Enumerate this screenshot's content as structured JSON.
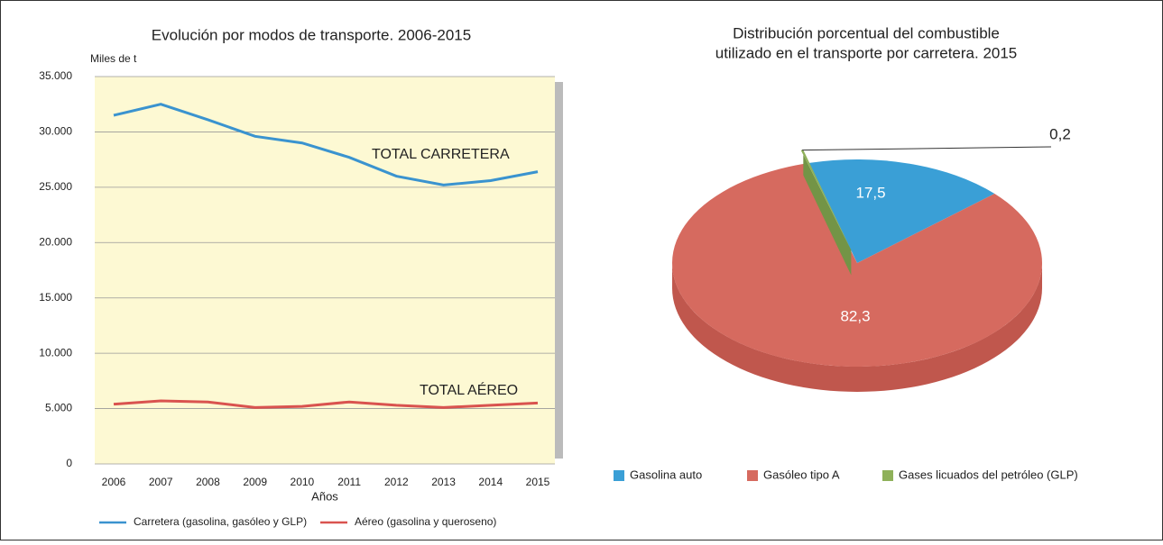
{
  "chart_data": [
    {
      "type": "line",
      "title": "Evolución por modos de transporte. 2006-2015",
      "y_label": "Miles de t",
      "x_label": "Años",
      "categories": [
        "2006",
        "2007",
        "2008",
        "2009",
        "2010",
        "2011",
        "2012",
        "2013",
        "2014",
        "2015"
      ],
      "series": [
        {
          "name": "Carretera (gasolina, gasóleo y GLP)",
          "color": "#3a93cf",
          "values": [
            31500,
            32500,
            31100,
            29600,
            29000,
            27700,
            26000,
            25200,
            25600,
            26400
          ]
        },
        {
          "name": "Aéreo (gasolina y queroseno)",
          "color": "#d9534f",
          "values": [
            5400,
            5700,
            5600,
            5100,
            5200,
            5600,
            5300,
            5100,
            5300,
            5500
          ]
        }
      ],
      "annotations": [
        "TOTAL CARRETERA",
        "TOTAL AÉREO"
      ],
      "ylim": [
        0,
        35000
      ],
      "yticks": [
        0,
        {
          "value": 5000,
          "label": "5.000"
        },
        {
          "value": 10000,
          "label": "10.000"
        },
        {
          "value": 15000,
          "label": "15.000"
        },
        {
          "value": 20000,
          "label": "20.000"
        },
        {
          "value": 25000,
          "label": "25.000"
        },
        {
          "value": 30000,
          "label": "30.000"
        },
        {
          "value": 35000,
          "label": "35.000"
        }
      ],
      "grid": true,
      "legend": "bottom"
    },
    {
      "type": "pie",
      "title": [
        "Distribución porcentual del combustible",
        "utilizado en el transporte por carretera. 2015"
      ],
      "categories": [
        "Gasolina auto",
        "Gasóleo tipo A",
        "Gases licuados del petróleo (GLP)"
      ],
      "values": [
        17.5,
        82.3,
        0.2
      ],
      "value_labels": [
        "17,5",
        "82,3",
        "0,2"
      ],
      "colors": [
        "#3a9fd6",
        "#d66a5f",
        "#8fb15a"
      ],
      "legend": "bottom"
    }
  ]
}
